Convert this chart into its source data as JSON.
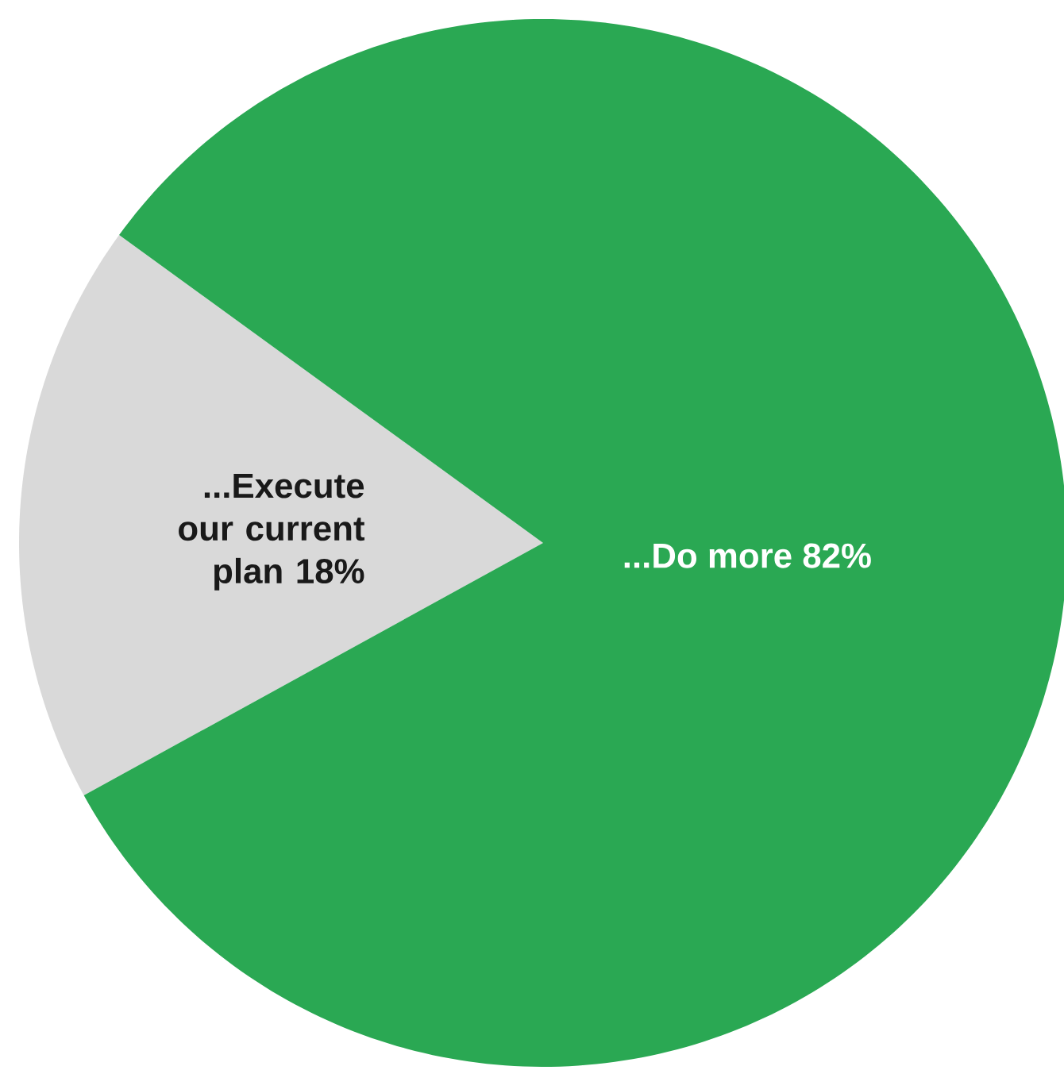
{
  "chart_data": {
    "type": "pie",
    "categories": [
      "...Execute our current plan",
      "...Do more"
    ],
    "values": [
      18,
      82
    ],
    "colors": [
      "#d9d9d9",
      "#2aa853"
    ],
    "value_labels": [
      "18%",
      "82%"
    ]
  }
}
